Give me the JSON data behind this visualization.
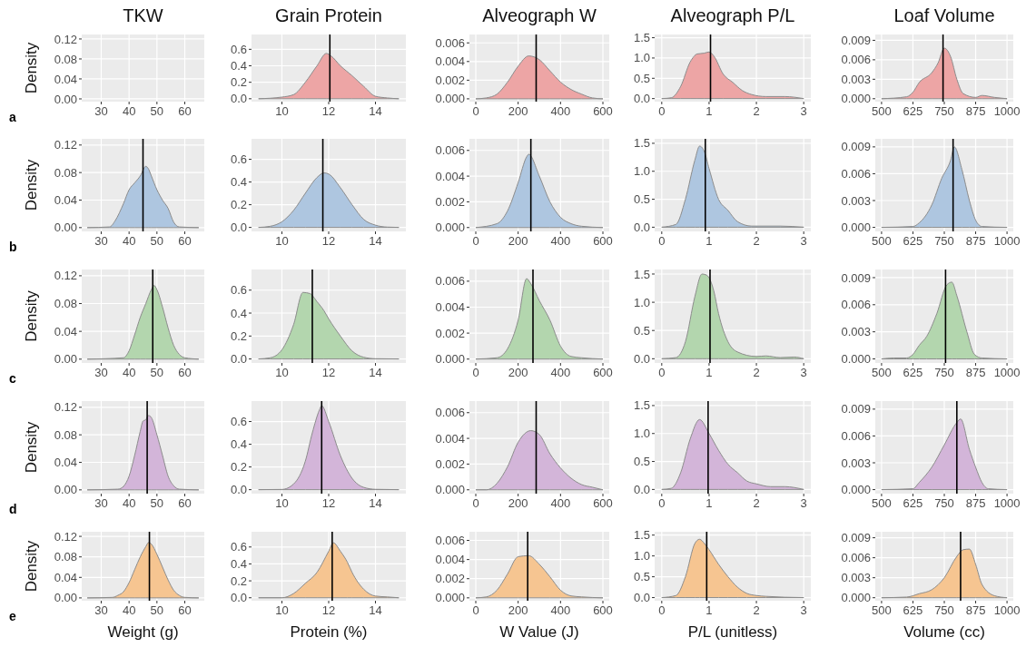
{
  "chart_data": [
    {
      "type": "area",
      "title": "TKW",
      "ylabel": "Density",
      "annotations": [
        "a"
      ],
      "xlim": [
        23,
        67
      ],
      "ylim": [
        -0.0055,
        0.129
      ],
      "xticks": [
        30,
        40,
        50,
        60
      ],
      "yticks": [
        {
          "value": 0,
          "label": "0.00"
        },
        {
          "value": 0.04,
          "label": "0.04"
        },
        {
          "value": 0.08,
          "label": "0.08"
        },
        {
          "value": 0.12,
          "label": "0.12"
        }
      ],
      "grid": true
    },
    {
      "type": "area",
      "title": "Grain Protein",
      "x": [
        9,
        10,
        10.5,
        11,
        11.5,
        11.9,
        12.1,
        12.5,
        13,
        13.5,
        14,
        14.5,
        15
      ],
      "values": [
        0,
        0.02,
        0.05,
        0.2,
        0.4,
        0.55,
        0.52,
        0.4,
        0.28,
        0.15,
        0.03,
        0.01,
        0
      ],
      "color": "#eda5a5",
      "xlim": [
        8.7,
        15.3
      ],
      "ylim": [
        -0.035,
        0.78
      ],
      "xticks": [
        10,
        12,
        14
      ],
      "yticks": [
        {
          "value": 0,
          "label": "0.0"
        },
        {
          "value": 0.2,
          "label": "0.2"
        },
        {
          "value": 0.4,
          "label": "0.4"
        },
        {
          "value": 0.6,
          "label": "0.6"
        }
      ],
      "ref_lines": [
        {
          "axis": "x",
          "value": 12.05
        }
      ],
      "grid": true
    },
    {
      "type": "area",
      "title": "Alveograph W",
      "x": [
        0,
        50,
        100,
        150,
        200,
        250,
        300,
        350,
        400,
        450,
        500,
        550,
        600
      ],
      "values": [
        0,
        0.0001,
        0.0005,
        0.0018,
        0.0035,
        0.0046,
        0.0042,
        0.003,
        0.0018,
        0.001,
        0.0005,
        0.0001,
        0
      ],
      "color": "#eda5a5",
      "xlim": [
        -30,
        630
      ],
      "ylim": [
        -0.0003,
        0.0069
      ],
      "xticks": [
        0,
        200,
        400,
        600
      ],
      "yticks": [
        {
          "value": 0,
          "label": "0.000"
        },
        {
          "value": 0.002,
          "label": "0.002"
        },
        {
          "value": 0.004,
          "label": "0.004"
        },
        {
          "value": 0.006,
          "label": "0.006"
        }
      ],
      "ref_lines": [
        {
          "axis": "x",
          "value": 285
        }
      ],
      "grid": true
    },
    {
      "type": "area",
      "title": "Alveograph P/L",
      "x": [
        0,
        0.2,
        0.4,
        0.6,
        0.75,
        0.9,
        1,
        1.1,
        1.3,
        1.5,
        1.7,
        1.9,
        2.2,
        2.6,
        3
      ],
      "values": [
        0,
        0.02,
        0.3,
        0.9,
        1.1,
        1.12,
        1.15,
        1.05,
        0.6,
        0.4,
        0.2,
        0.1,
        0.05,
        0.05,
        0
      ],
      "color": "#eda5a5",
      "xlim": [
        -0.15,
        3.15
      ],
      "ylim": [
        -0.075,
        1.58
      ],
      "xticks": [
        0,
        1,
        2,
        3
      ],
      "yticks": [
        {
          "value": 0,
          "label": "0.0"
        },
        {
          "value": 0.5,
          "label": "0.5"
        },
        {
          "value": 1,
          "label": "1.0"
        },
        {
          "value": 1.5,
          "label": "1.5"
        }
      ],
      "ref_lines": [
        {
          "axis": "x",
          "value": 1.03
        }
      ],
      "grid": true
    },
    {
      "type": "area",
      "title": "Loaf Volume",
      "x": [
        500,
        600,
        625,
        650,
        700,
        725,
        750,
        775,
        800,
        825,
        875,
        900,
        950,
        1000
      ],
      "values": [
        0,
        0.0003,
        0.001,
        0.0025,
        0.004,
        0.0055,
        0.0078,
        0.0065,
        0.003,
        0.0008,
        0.0002,
        0.0005,
        0.0002,
        0
      ],
      "color": "#eda5a5",
      "xlim": [
        475,
        1025
      ],
      "ylim": [
        -0.00045,
        0.0099
      ],
      "xticks": [
        500,
        625,
        750,
        875,
        1000
      ],
      "yticks": [
        {
          "value": 0,
          "label": "0.000"
        },
        {
          "value": 0.003,
          "label": "0.003"
        },
        {
          "value": 0.006,
          "label": "0.006"
        },
        {
          "value": 0.009,
          "label": "0.009"
        }
      ],
      "ref_lines": [
        {
          "axis": "x",
          "value": 745
        }
      ],
      "grid": true
    },
    {
      "type": "area",
      "ylabel": "Density",
      "annotations": [
        "b"
      ],
      "x": [
        25,
        33,
        35,
        38,
        40,
        42,
        44,
        46,
        47,
        48,
        50,
        52,
        54,
        56,
        58,
        65
      ],
      "values": [
        0,
        0.001,
        0.01,
        0.035,
        0.055,
        0.065,
        0.075,
        0.089,
        0.085,
        0.075,
        0.055,
        0.04,
        0.028,
        0.008,
        0.001,
        0
      ],
      "color": "#aec6e0",
      "xlim": [
        23,
        67
      ],
      "ylim": [
        -0.0055,
        0.129
      ],
      "xticks": [
        30,
        40,
        50,
        60
      ],
      "yticks": [
        {
          "value": 0,
          "label": "0.00"
        },
        {
          "value": 0.04,
          "label": "0.04"
        },
        {
          "value": 0.08,
          "label": "0.08"
        },
        {
          "value": 0.12,
          "label": "0.12"
        }
      ],
      "ref_lines": [
        {
          "axis": "x",
          "value": 45
        }
      ],
      "grid": true
    },
    {
      "type": "area",
      "x": [
        9,
        9.5,
        10,
        10.5,
        11,
        11.5,
        11.8,
        12,
        12.5,
        13,
        13.5,
        14,
        14.5,
        15
      ],
      "values": [
        0,
        0.01,
        0.05,
        0.15,
        0.3,
        0.44,
        0.48,
        0.47,
        0.35,
        0.2,
        0.07,
        0.02,
        0.003,
        0
      ],
      "color": "#aec6e0",
      "xlim": [
        8.7,
        15.3
      ],
      "ylim": [
        -0.035,
        0.78
      ],
      "xticks": [
        10,
        12,
        14
      ],
      "yticks": [
        {
          "value": 0,
          "label": "0.0"
        },
        {
          "value": 0.2,
          "label": "0.2"
        },
        {
          "value": 0.4,
          "label": "0.4"
        },
        {
          "value": 0.6,
          "label": "0.6"
        }
      ],
      "ref_lines": [
        {
          "axis": "x",
          "value": 11.75
        }
      ],
      "grid": true
    },
    {
      "type": "area",
      "x": [
        0,
        100,
        150,
        200,
        240,
        250,
        300,
        350,
        400,
        450,
        500,
        600
      ],
      "values": [
        0,
        0.0003,
        0.0013,
        0.0035,
        0.0055,
        0.0057,
        0.004,
        0.002,
        0.0008,
        0.0003,
        0.0001,
        0
      ],
      "color": "#aec6e0",
      "xlim": [
        -30,
        630
      ],
      "ylim": [
        -0.0003,
        0.0069
      ],
      "xticks": [
        0,
        200,
        400,
        600
      ],
      "yticks": [
        {
          "value": 0,
          "label": "0.000"
        },
        {
          "value": 0.002,
          "label": "0.002"
        },
        {
          "value": 0.004,
          "label": "0.004"
        },
        {
          "value": 0.006,
          "label": "0.006"
        }
      ],
      "ref_lines": [
        {
          "axis": "x",
          "value": 260
        }
      ],
      "grid": true
    },
    {
      "type": "area",
      "x": [
        0,
        0.3,
        0.5,
        0.7,
        0.8,
        0.9,
        1,
        1.2,
        1.4,
        1.6,
        1.9,
        2.5,
        3
      ],
      "values": [
        0,
        0.05,
        0.5,
        1.2,
        1.45,
        1.35,
        1.05,
        0.5,
        0.3,
        0.1,
        0.02,
        0.02,
        0
      ],
      "color": "#aec6e0",
      "xlim": [
        -0.15,
        3.15
      ],
      "ylim": [
        -0.075,
        1.58
      ],
      "xticks": [
        0,
        1,
        2,
        3
      ],
      "yticks": [
        {
          "value": 0,
          "label": "0.0"
        },
        {
          "value": 0.5,
          "label": "0.5"
        },
        {
          "value": 1,
          "label": "1.0"
        },
        {
          "value": 1.5,
          "label": "1.5"
        }
      ],
      "ref_lines": [
        {
          "axis": "x",
          "value": 0.92
        }
      ],
      "grid": true
    },
    {
      "type": "area",
      "x": [
        500,
        625,
        650,
        700,
        740,
        775,
        790,
        820,
        850,
        875,
        900,
        1000
      ],
      "values": [
        0,
        0.0001,
        0.0005,
        0.0025,
        0.0055,
        0.0075,
        0.009,
        0.0065,
        0.003,
        0.0008,
        0.0001,
        0
      ],
      "color": "#aec6e0",
      "xlim": [
        475,
        1025
      ],
      "ylim": [
        -0.00045,
        0.0099
      ],
      "xticks": [
        500,
        625,
        750,
        875,
        1000
      ],
      "yticks": [
        {
          "value": 0,
          "label": "0.000"
        },
        {
          "value": 0.003,
          "label": "0.003"
        },
        {
          "value": 0.006,
          "label": "0.006"
        },
        {
          "value": 0.009,
          "label": "0.009"
        }
      ],
      "ref_lines": [
        {
          "axis": "x",
          "value": 785
        }
      ],
      "grid": true
    },
    {
      "type": "area",
      "ylabel": "Density",
      "annotations": [
        "c"
      ],
      "x": [
        25,
        38,
        40,
        42,
        44,
        46,
        48,
        49,
        50,
        52,
        54,
        56,
        58,
        60,
        65
      ],
      "values": [
        0,
        0.002,
        0.012,
        0.035,
        0.06,
        0.08,
        0.1,
        0.106,
        0.1,
        0.075,
        0.045,
        0.02,
        0.007,
        0.002,
        0
      ],
      "color": "#b3d6ae",
      "xlim": [
        23,
        67
      ],
      "ylim": [
        -0.0055,
        0.129
      ],
      "xticks": [
        30,
        40,
        50,
        60
      ],
      "yticks": [
        {
          "value": 0,
          "label": "0.00"
        },
        {
          "value": 0.04,
          "label": "0.04"
        },
        {
          "value": 0.08,
          "label": "0.08"
        },
        {
          "value": 0.12,
          "label": "0.12"
        }
      ],
      "ref_lines": [
        {
          "axis": "x",
          "value": 48.5
        }
      ],
      "grid": true
    },
    {
      "type": "area",
      "x": [
        9,
        9.5,
        10,
        10.5,
        10.9,
        11.2,
        11.5,
        11.8,
        12,
        12.5,
        13,
        13.5,
        14,
        15
      ],
      "values": [
        0,
        0.01,
        0.08,
        0.3,
        0.58,
        0.57,
        0.5,
        0.42,
        0.35,
        0.2,
        0.07,
        0.015,
        0.002,
        0
      ],
      "color": "#b3d6ae",
      "xlim": [
        8.7,
        15.3
      ],
      "ylim": [
        -0.035,
        0.78
      ],
      "xticks": [
        10,
        12,
        14
      ],
      "yticks": [
        {
          "value": 0,
          "label": "0.0"
        },
        {
          "value": 0.2,
          "label": "0.2"
        },
        {
          "value": 0.4,
          "label": "0.4"
        },
        {
          "value": 0.6,
          "label": "0.6"
        }
      ],
      "ref_lines": [
        {
          "axis": "x",
          "value": 11.3
        }
      ],
      "grid": true
    },
    {
      "type": "area",
      "x": [
        0,
        100,
        150,
        200,
        240,
        260,
        300,
        350,
        400,
        450,
        500,
        600
      ],
      "values": [
        0,
        0.0001,
        0.0008,
        0.003,
        0.0062,
        0.0058,
        0.0045,
        0.003,
        0.001,
        0.0002,
        0.0001,
        0
      ],
      "color": "#b3d6ae",
      "xlim": [
        -30,
        630
      ],
      "ylim": [
        -0.0003,
        0.0069
      ],
      "xticks": [
        0,
        200,
        400,
        600
      ],
      "yticks": [
        {
          "value": 0,
          "label": "0.000"
        },
        {
          "value": 0.002,
          "label": "0.002"
        },
        {
          "value": 0.004,
          "label": "0.004"
        },
        {
          "value": 0.006,
          "label": "0.006"
        }
      ],
      "ref_lines": [
        {
          "axis": "x",
          "value": 270
        }
      ],
      "grid": true
    },
    {
      "type": "area",
      "x": [
        0,
        0.3,
        0.5,
        0.7,
        0.85,
        0.95,
        1.1,
        1.2,
        1.4,
        1.6,
        2,
        2.2,
        2.5,
        2.8,
        3
      ],
      "values": [
        0,
        0.02,
        0.3,
        1.1,
        1.5,
        1.48,
        1.2,
        0.8,
        0.3,
        0.12,
        0.04,
        0.05,
        0.02,
        0.03,
        0
      ],
      "color": "#b3d6ae",
      "xlim": [
        -0.15,
        3.15
      ],
      "ylim": [
        -0.075,
        1.58
      ],
      "xticks": [
        0,
        1,
        2,
        3
      ],
      "yticks": [
        {
          "value": 0,
          "label": "0.0"
        },
        {
          "value": 0.5,
          "label": "0.5"
        },
        {
          "value": 1,
          "label": "1.0"
        },
        {
          "value": 1.5,
          "label": "1.5"
        }
      ],
      "ref_lines": [
        {
          "axis": "x",
          "value": 1.02
        }
      ],
      "grid": true
    },
    {
      "type": "area",
      "x": [
        500,
        550,
        600,
        625,
        650,
        680,
        720,
        760,
        780,
        800,
        840,
        870,
        900,
        1000
      ],
      "values": [
        0,
        0.0001,
        0.0001,
        0.0005,
        0.0015,
        0.0025,
        0.005,
        0.0082,
        0.0085,
        0.007,
        0.003,
        0.0005,
        0.0001,
        0
      ],
      "color": "#b3d6ae",
      "xlim": [
        475,
        1025
      ],
      "ylim": [
        -0.00045,
        0.0099
      ],
      "xticks": [
        500,
        625,
        750,
        875,
        1000
      ],
      "yticks": [
        {
          "value": 0,
          "label": "0.000"
        },
        {
          "value": 0.003,
          "label": "0.003"
        },
        {
          "value": 0.006,
          "label": "0.006"
        },
        {
          "value": 0.009,
          "label": "0.009"
        }
      ],
      "ref_lines": [
        {
          "axis": "x",
          "value": 755
        }
      ],
      "grid": true
    },
    {
      "type": "area",
      "ylabel": "Density",
      "annotations": [
        "d"
      ],
      "x": [
        25,
        36,
        38,
        40,
        42,
        44,
        45,
        46,
        47,
        48,
        50,
        52,
        54,
        56,
        58,
        65
      ],
      "values": [
        0,
        0.001,
        0.005,
        0.02,
        0.05,
        0.085,
        0.1,
        0.102,
        0.108,
        0.105,
        0.08,
        0.05,
        0.02,
        0.006,
        0.001,
        0
      ],
      "color": "#d3b5d9",
      "xlim": [
        23,
        67
      ],
      "ylim": [
        -0.0055,
        0.129
      ],
      "xticks": [
        30,
        40,
        50,
        60
      ],
      "yticks": [
        {
          "value": 0,
          "label": "0.00"
        },
        {
          "value": 0.04,
          "label": "0.04"
        },
        {
          "value": 0.08,
          "label": "0.08"
        },
        {
          "value": 0.12,
          "label": "0.12"
        }
      ],
      "ref_lines": [
        {
          "axis": "x",
          "value": 46.5
        }
      ],
      "grid": true
    },
    {
      "type": "area",
      "x": [
        9,
        10,
        10.5,
        11,
        11.3,
        11.6,
        11.7,
        12,
        12.5,
        13,
        13.5,
        14,
        15
      ],
      "values": [
        0,
        0.002,
        0.05,
        0.25,
        0.5,
        0.7,
        0.74,
        0.6,
        0.3,
        0.1,
        0.02,
        0.003,
        0
      ],
      "color": "#d3b5d9",
      "xlim": [
        8.7,
        15.3
      ],
      "ylim": [
        -0.035,
        0.78
      ],
      "xticks": [
        10,
        12,
        14
      ],
      "yticks": [
        {
          "value": 0,
          "label": "0.0"
        },
        {
          "value": 0.2,
          "label": "0.2"
        },
        {
          "value": 0.4,
          "label": "0.4"
        },
        {
          "value": 0.6,
          "label": "0.6"
        }
      ],
      "ref_lines": [
        {
          "axis": "x",
          "value": 11.7
        }
      ],
      "grid": true
    },
    {
      "type": "area",
      "x": [
        0,
        50,
        100,
        150,
        200,
        260,
        300,
        350,
        400,
        450,
        500,
        550,
        600
      ],
      "values": [
        0,
        0,
        0.0005,
        0.0018,
        0.0037,
        0.0046,
        0.0043,
        0.0028,
        0.0017,
        0.0009,
        0.0004,
        0.0002,
        0
      ],
      "color": "#d3b5d9",
      "xlim": [
        -30,
        630
      ],
      "ylim": [
        -0.0003,
        0.0069
      ],
      "xticks": [
        0,
        200,
        400,
        600
      ],
      "yticks": [
        {
          "value": 0,
          "label": "0.000"
        },
        {
          "value": 0.002,
          "label": "0.002"
        },
        {
          "value": 0.004,
          "label": "0.004"
        },
        {
          "value": 0.006,
          "label": "0.006"
        }
      ],
      "ref_lines": [
        {
          "axis": "x",
          "value": 285
        }
      ],
      "grid": true
    },
    {
      "type": "area",
      "x": [
        0,
        0.2,
        0.4,
        0.6,
        0.8,
        1,
        1.2,
        1.4,
        1.6,
        1.8,
        2,
        2.3,
        2.6,
        3
      ],
      "values": [
        0,
        0.02,
        0.3,
        0.9,
        1.25,
        1,
        0.7,
        0.45,
        0.3,
        0.15,
        0.1,
        0.05,
        0.05,
        0
      ],
      "color": "#d3b5d9",
      "xlim": [
        -0.15,
        3.15
      ],
      "ylim": [
        -0.075,
        1.58
      ],
      "xticks": [
        0,
        1,
        2,
        3
      ],
      "yticks": [
        {
          "value": 0,
          "label": "0.0"
        },
        {
          "value": 0.5,
          "label": "0.5"
        },
        {
          "value": 1,
          "label": "1.0"
        },
        {
          "value": 1.5,
          "label": "1.5"
        }
      ],
      "ref_lines": [
        {
          "axis": "x",
          "value": 0.98
        }
      ],
      "grid": true
    },
    {
      "type": "area",
      "x": [
        500,
        625,
        650,
        700,
        750,
        800,
        815,
        850,
        875,
        900,
        925,
        1000
      ],
      "values": [
        0,
        0.0001,
        0.0008,
        0.0025,
        0.005,
        0.0075,
        0.0079,
        0.0045,
        0.0025,
        0.0008,
        0.0001,
        0
      ],
      "color": "#d3b5d9",
      "xlim": [
        475,
        1025
      ],
      "ylim": [
        -0.00045,
        0.0099
      ],
      "xticks": [
        500,
        625,
        750,
        875,
        1000
      ],
      "yticks": [
        {
          "value": 0,
          "label": "0.000"
        },
        {
          "value": 0.003,
          "label": "0.003"
        },
        {
          "value": 0.006,
          "label": "0.006"
        },
        {
          "value": 0.009,
          "label": "0.009"
        }
      ],
      "ref_lines": [
        {
          "axis": "x",
          "value": 800
        }
      ],
      "grid": true
    },
    {
      "type": "area",
      "xlabel": "Weight (g)",
      "ylabel": "Density",
      "annotations": [
        "e"
      ],
      "x": [
        25,
        34,
        36,
        38,
        40,
        42,
        44,
        46,
        47,
        48,
        50,
        52,
        54,
        56,
        58,
        60,
        65
      ],
      "values": [
        0,
        0.001,
        0.005,
        0.012,
        0.03,
        0.055,
        0.08,
        0.1,
        0.108,
        0.105,
        0.085,
        0.06,
        0.035,
        0.015,
        0.005,
        0.001,
        0
      ],
      "color": "#f6c591",
      "xlim": [
        23,
        67
      ],
      "ylim": [
        -0.0055,
        0.129
      ],
      "xticks": [
        30,
        40,
        50,
        60
      ],
      "yticks": [
        {
          "value": 0,
          "label": "0.00"
        },
        {
          "value": 0.04,
          "label": "0.04"
        },
        {
          "value": 0.08,
          "label": "0.08"
        },
        {
          "value": 0.12,
          "label": "0.12"
        }
      ],
      "ref_lines": [
        {
          "axis": "x",
          "value": 47.3
        }
      ],
      "grid": true
    },
    {
      "type": "area",
      "xlabel": "Protein (%)",
      "x": [
        9,
        10,
        10.5,
        11,
        11.5,
        12,
        12.2,
        12.5,
        12.8,
        13,
        13.5,
        14,
        14.5,
        15
      ],
      "values": [
        0,
        0,
        0.05,
        0.17,
        0.3,
        0.55,
        0.65,
        0.55,
        0.42,
        0.3,
        0.1,
        0.02,
        0.01,
        0
      ],
      "color": "#f6c591",
      "xlim": [
        8.7,
        15.3
      ],
      "ylim": [
        -0.035,
        0.78
      ],
      "xticks": [
        10,
        12,
        14
      ],
      "yticks": [
        {
          "value": 0,
          "label": "0.0"
        },
        {
          "value": 0.2,
          "label": "0.2"
        },
        {
          "value": 0.4,
          "label": "0.4"
        },
        {
          "value": 0.6,
          "label": "0.6"
        }
      ],
      "ref_lines": [
        {
          "axis": "x",
          "value": 12.15
        }
      ],
      "grid": true
    },
    {
      "type": "area",
      "xlabel": "W Value (J)",
      "x": [
        0,
        50,
        100,
        150,
        200,
        250,
        300,
        350,
        400,
        450,
        500,
        600
      ],
      "values": [
        0,
        0.0001,
        0.0008,
        0.0025,
        0.0043,
        0.0044,
        0.0035,
        0.0022,
        0.0008,
        0.0002,
        0.0001,
        0
      ],
      "color": "#f6c591",
      "xlim": [
        -30,
        630
      ],
      "ylim": [
        -0.0003,
        0.0069
      ],
      "xticks": [
        0,
        200,
        400,
        600
      ],
      "yticks": [
        {
          "value": 0,
          "label": "0.000"
        },
        {
          "value": 0.002,
          "label": "0.002"
        },
        {
          "value": 0.004,
          "label": "0.004"
        },
        {
          "value": 0.006,
          "label": "0.006"
        }
      ],
      "ref_lines": [
        {
          "axis": "x",
          "value": 245
        }
      ],
      "grid": true
    },
    {
      "type": "area",
      "xlabel": "P/L (unitless)",
      "x": [
        0,
        0.3,
        0.5,
        0.7,
        0.8,
        0.9,
        1,
        1.2,
        1.4,
        1.6,
        1.8,
        2,
        2.2,
        3
      ],
      "values": [
        0,
        0.05,
        0.5,
        1.3,
        1.4,
        1.3,
        1.15,
        0.8,
        0.5,
        0.25,
        0.1,
        0.05,
        0.03,
        0
      ],
      "color": "#f6c591",
      "xlim": [
        -0.15,
        3.15
      ],
      "ylim": [
        -0.075,
        1.58
      ],
      "xticks": [
        0,
        1,
        2,
        3
      ],
      "yticks": [
        {
          "value": 0,
          "label": "0.0"
        },
        {
          "value": 0.5,
          "label": "0.5"
        },
        {
          "value": 1,
          "label": "1.0"
        },
        {
          "value": 1.5,
          "label": "1.5"
        }
      ],
      "ref_lines": [
        {
          "axis": "x",
          "value": 0.95
        }
      ],
      "grid": true
    },
    {
      "type": "area",
      "xlabel": "Volume (cc)",
      "x": [
        500,
        600,
        650,
        700,
        750,
        800,
        825,
        850,
        875,
        900,
        950,
        1000
      ],
      "values": [
        0,
        0.0001,
        0.0006,
        0.0012,
        0.003,
        0.0062,
        0.0072,
        0.0073,
        0.005,
        0.002,
        0.0003,
        0
      ],
      "color": "#f6c591",
      "xlim": [
        475,
        1025
      ],
      "ylim": [
        -0.00045,
        0.0099
      ],
      "xticks": [
        500,
        625,
        750,
        875,
        1000
      ],
      "yticks": [
        {
          "value": 0,
          "label": "0.000"
        },
        {
          "value": 0.003,
          "label": "0.003"
        },
        {
          "value": 0.006,
          "label": "0.006"
        },
        {
          "value": 0.009,
          "label": "0.009"
        }
      ],
      "ref_lines": [
        {
          "axis": "x",
          "value": 815
        }
      ],
      "grid": true
    }
  ]
}
